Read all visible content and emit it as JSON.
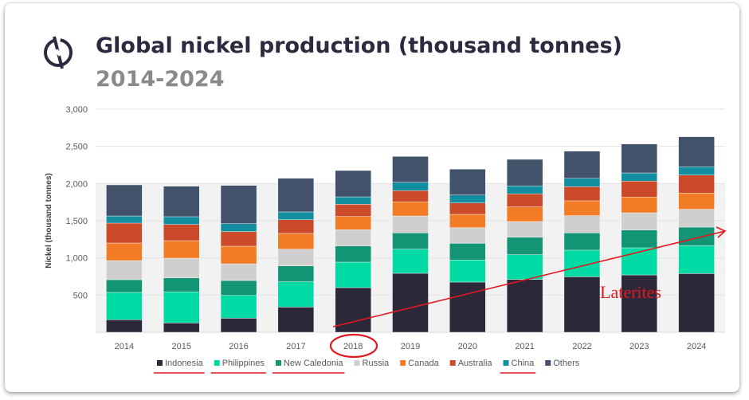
{
  "chart_data": {
    "type": "bar",
    "stacked": true,
    "title": "Global nickel production (thousand tonnes)",
    "subtitle": "2014-2024",
    "xlabel": "",
    "ylabel": "Nickel (thousand tonnes)",
    "ylim": [
      0,
      3000
    ],
    "yticks": [
      500,
      1000,
      1500,
      2000,
      2500,
      3000
    ],
    "ytick_labels": [
      "500",
      "1,000",
      "1,500",
      "2,000",
      "2,500",
      "3,000"
    ],
    "grid": true,
    "legend_position": "bottom",
    "categories": [
      "2014",
      "2015",
      "2016",
      "2017",
      "2018",
      "2019",
      "2020",
      "2021",
      "2022",
      "2023",
      "2024"
    ],
    "series": [
      {
        "name": "Indonesia",
        "color": "#2c2839",
        "values": [
          168,
          125,
          189,
          339,
          600,
          793,
          675,
          711,
          746,
          771,
          789
        ]
      },
      {
        "name": "Philippines",
        "color": "#00dba5",
        "values": [
          368,
          418,
          307,
          340,
          343,
          325,
          296,
          332,
          358,
          365,
          375
        ]
      },
      {
        "name": "New Caledonia",
        "color": "#129475",
        "values": [
          171,
          189,
          200,
          214,
          218,
          218,
          225,
          236,
          232,
          239,
          250
        ]
      },
      {
        "name": "Russia",
        "color": "#d0cece",
        "values": [
          257,
          264,
          225,
          225,
          218,
          228,
          211,
          210,
          232,
          232,
          240
        ]
      },
      {
        "name": "Canada",
        "color": "#f27b25",
        "values": [
          236,
          236,
          236,
          211,
          178,
          190,
          179,
          197,
          200,
          211,
          217
        ]
      },
      {
        "name": "Australia",
        "color": "#cb4a29",
        "values": [
          268,
          218,
          197,
          185,
          164,
          150,
          153,
          175,
          189,
          214,
          243
        ]
      },
      {
        "name": "China",
        "color": "#128ea0",
        "values": [
          96,
          104,
          107,
          104,
          100,
          114,
          107,
          107,
          114,
          111,
          111
        ]
      },
      {
        "name": "Others",
        "color": "#42526a",
        "values": [
          418,
          410,
          514,
          453,
          354,
          346,
          347,
          357,
          365,
          389,
          404
        ]
      }
    ]
  },
  "annotations": {
    "arrow_label": "Laterites",
    "circled_category": "2018",
    "underlined_legend": [
      "Indonesia",
      "Philippines",
      "New Caledonia",
      "China"
    ],
    "color": "#e0191f"
  },
  "logo": {
    "icon": "nickel-logo-icon"
  }
}
